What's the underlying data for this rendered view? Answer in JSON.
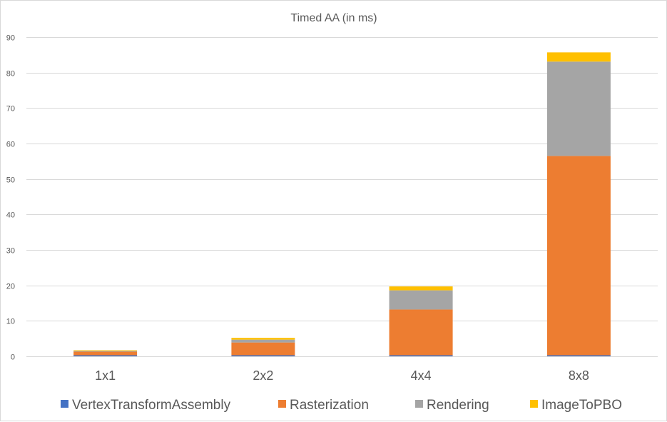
{
  "chart_data": {
    "type": "bar",
    "stacked": true,
    "title": "Timed AA (in ms)",
    "xlabel": "",
    "ylabel": "",
    "categories": [
      "1x1",
      "2x2",
      "4x4",
      "8x8"
    ],
    "ylim": [
      0,
      90
    ],
    "yticks": [
      0,
      10,
      20,
      30,
      40,
      50,
      60,
      70,
      80,
      90
    ],
    "grid": true,
    "legend_position": "bottom",
    "series": [
      {
        "name": "VertexTransformAssembly",
        "color": "#4472c4",
        "values": [
          0.3,
          0.3,
          0.3,
          0.3
        ]
      },
      {
        "name": "Rasterization",
        "color": "#ed7d31",
        "values": [
          1.0,
          3.6,
          12.9,
          56.2
        ]
      },
      {
        "name": "Rendering",
        "color": "#a5a5a5",
        "values": [
          0.2,
          0.8,
          5.4,
          26.6
        ]
      },
      {
        "name": "ImageToPBO",
        "color": "#ffc000",
        "values": [
          0.2,
          0.5,
          1.1,
          2.6
        ]
      }
    ]
  }
}
